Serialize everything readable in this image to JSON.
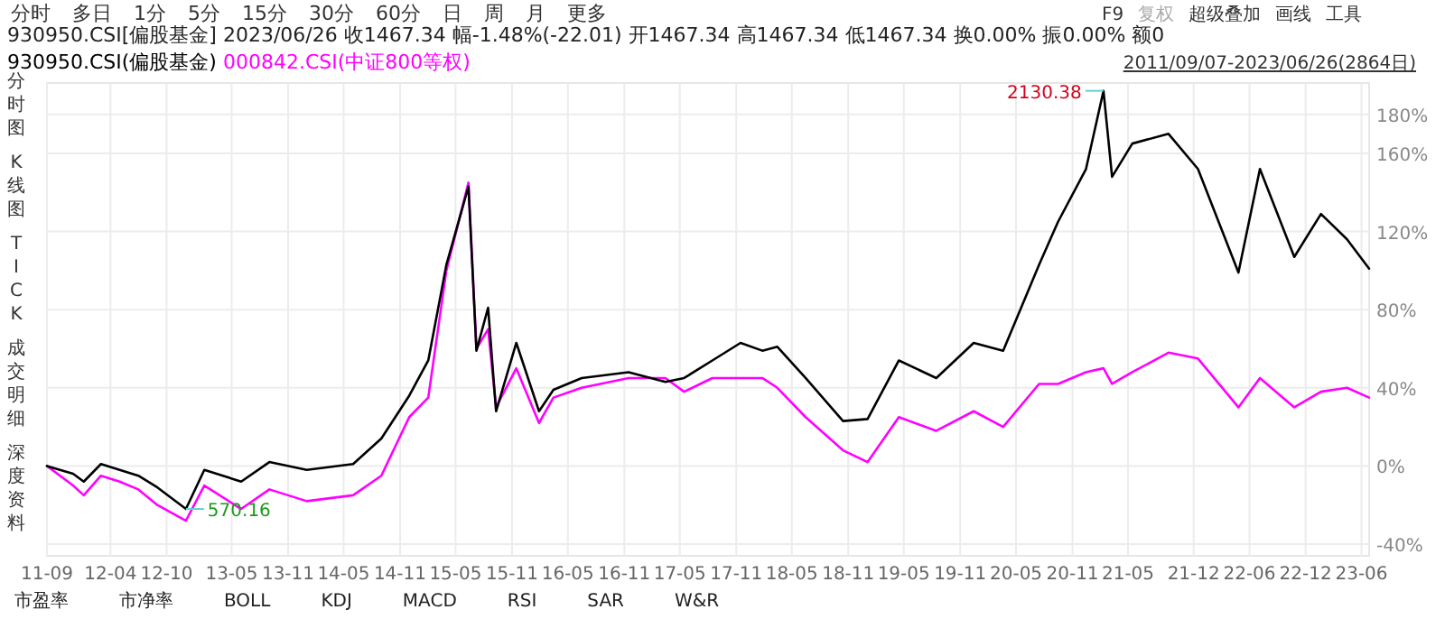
{
  "chart_data": {
    "type": "line",
    "title": "930950.CSI[偏股基金]   2023/06/26  收1467.34  幅-1.48%(-22.01)  开1467.34  高1467.34  低1467.34  换0.00%  振0.00%  额0",
    "x": [
      "2011-09-07",
      "2011-12-01",
      "2012-01-05",
      "2012-03-01",
      "2012-05-01",
      "2012-07-01",
      "2012-09-01",
      "2012-12-03",
      "2013-02-01",
      "2013-06-01",
      "2013-09-01",
      "2014-01-01",
      "2014-06-01",
      "2014-09-01",
      "2014-12-01",
      "2015-02-01",
      "2015-04-01",
      "2015-06-12",
      "2015-07-08",
      "2015-08-15",
      "2015-09-10",
      "2015-11-15",
      "2016-01-28",
      "2016-03-15",
      "2016-06-15",
      "2016-11-15",
      "2017-03-15",
      "2017-05-15",
      "2017-08-15",
      "2017-11-15",
      "2018-01-25",
      "2018-03-15",
      "2018-06-15",
      "2018-10-15",
      "2019-01-03",
      "2019-04-15",
      "2019-08-15",
      "2019-12-15",
      "2020-03-20",
      "2020-07-15",
      "2020-09-15",
      "2020-12-15",
      "2021-02-10",
      "2021-03-10",
      "2021-05-15",
      "2021-09-10",
      "2021-12-15",
      "2022-04-26",
      "2022-07-05",
      "2022-10-25",
      "2023-01-20",
      "2023-04-15",
      "2023-06-26"
    ],
    "series": [
      {
        "name": "930950.CSI(偏股基金)",
        "color": "#000000",
        "values": [
          0,
          -4,
          -8,
          1,
          -2,
          -5,
          -11,
          -22,
          -2,
          -8,
          2,
          -2,
          1,
          14,
          36,
          54,
          103,
          143,
          59,
          81,
          28,
          63,
          28,
          39,
          45,
          48,
          43,
          45,
          54,
          63,
          59,
          61,
          45,
          23,
          24,
          54,
          45,
          63,
          59,
          103,
          125,
          152,
          192,
          148,
          165,
          170,
          152,
          99,
          152,
          107,
          129,
          116,
          101
        ]
      },
      {
        "name": "000842.CSI(中证800等权)",
        "color": "#ff00ff",
        "values": [
          0,
          -10,
          -15,
          -5,
          -8,
          -12,
          -20,
          -28,
          -10,
          -22,
          -12,
          -18,
          -15,
          -5,
          25,
          35,
          100,
          145,
          60,
          70,
          30,
          50,
          22,
          35,
          40,
          45,
          45,
          38,
          45,
          45,
          45,
          40,
          25,
          8,
          2,
          25,
          18,
          28,
          20,
          42,
          42,
          48,
          50,
          42,
          48,
          58,
          55,
          30,
          45,
          30,
          38,
          40,
          35
        ]
      }
    ],
    "xlim": [
      "2011-09-07",
      "2023-06-26"
    ],
    "xticks": [
      {
        "value": "2011-09-07",
        "label": "11-09"
      },
      {
        "value": "2012-04-01",
        "label": "12-04"
      },
      {
        "value": "2012-10-01",
        "label": "12-10"
      },
      {
        "value": "2013-05-01",
        "label": "13-05"
      },
      {
        "value": "2013-11-01",
        "label": "13-11"
      },
      {
        "value": "2014-05-01",
        "label": "14-05"
      },
      {
        "value": "2014-11-01",
        "label": "14-11"
      },
      {
        "value": "2015-05-01",
        "label": "15-05"
      },
      {
        "value": "2015-11-01",
        "label": "15-11"
      },
      {
        "value": "2016-05-01",
        "label": "16-05"
      },
      {
        "value": "2016-11-01",
        "label": "16-11"
      },
      {
        "value": "2017-05-01",
        "label": "17-05"
      },
      {
        "value": "2017-11-01",
        "label": "17-11"
      },
      {
        "value": "2018-05-01",
        "label": "18-05"
      },
      {
        "value": "2018-11-01",
        "label": "18-11"
      },
      {
        "value": "2019-05-01",
        "label": "19-05"
      },
      {
        "value": "2019-11-01",
        "label": "19-11"
      },
      {
        "value": "2020-05-01",
        "label": "20-05"
      },
      {
        "value": "2020-11-01",
        "label": "20-11"
      },
      {
        "value": "2021-05-01",
        "label": "21-05"
      },
      {
        "value": "2021-12-01",
        "label": "21-12"
      },
      {
        "value": "2022-06-01",
        "label": "22-06"
      },
      {
        "value": "2022-12-01",
        "label": "22-12"
      },
      {
        "value": "2023-06-01",
        "label": "23-06"
      }
    ],
    "ylim": [
      -46,
      196
    ],
    "yticks": [
      {
        "value": -40,
        "label": "-40%"
      },
      {
        "value": 0,
        "label": "0%"
      },
      {
        "value": 40,
        "label": "40%"
      },
      {
        "value": 80,
        "label": "80%"
      },
      {
        "value": 120,
        "label": "120%"
      },
      {
        "value": 160,
        "label": "160%"
      },
      {
        "value": 180,
        "label": "180%"
      }
    ],
    "grid": true,
    "legend": "top left",
    "line_style": "solid",
    "annotations": [
      {
        "text": "2130.38",
        "x": "2021-02-10",
        "y": 192
      },
      {
        "text": "570.16",
        "x": "2012-12-03",
        "y": -22
      },
      "分时",
      "多日",
      "1分",
      "5分",
      "15分",
      "30分",
      "60分",
      "日",
      "周",
      "月",
      "更多",
      "F9",
      "复权",
      "超级叠加",
      "画线",
      "工具",
      "2011/09/07-2023/06/26(2864日)",
      "分时图",
      "K线图",
      "TICK",
      "成交明细",
      "深度资料",
      "市盈率",
      "市净率",
      "BOLL",
      "KDJ",
      "MACD",
      "RSI",
      "SAR",
      "W&R"
    ]
  }
}
